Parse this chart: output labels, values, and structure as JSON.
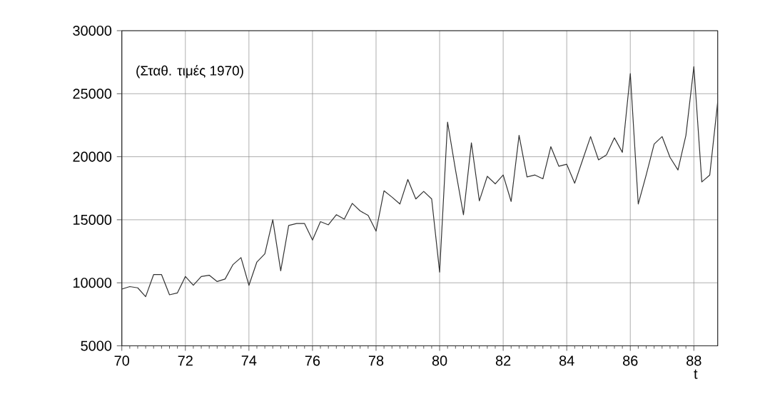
{
  "chart_data": {
    "type": "line",
    "annotations": [
      "(Σταθ. τιμές 1970)"
    ],
    "xlabel": "t",
    "x": [
      70,
      70.25,
      70.5,
      70.75,
      71,
      71.25,
      71.5,
      71.75,
      72,
      72.25,
      72.5,
      72.75,
      73,
      73.25,
      73.5,
      73.75,
      74,
      74.25,
      74.5,
      74.75,
      75,
      75.25,
      75.5,
      75.75,
      76,
      76.25,
      76.5,
      76.75,
      77,
      77.25,
      77.5,
      77.75,
      78,
      78.25,
      78.5,
      78.75,
      79,
      79.25,
      79.5,
      79.75,
      80,
      80.25,
      80.5,
      80.75,
      81,
      81.25,
      81.5,
      81.75,
      82,
      82.25,
      82.5,
      82.75,
      83,
      83.25,
      83.5,
      83.75,
      84,
      84.25,
      84.5,
      84.75,
      85,
      85.25,
      85.5,
      85.75,
      86,
      86.25,
      86.5,
      86.75,
      87,
      87.25,
      87.5,
      87.75,
      88,
      88.25,
      88.5,
      88.75
    ],
    "values": [
      9500,
      9700,
      9600,
      8900,
      10650,
      10650,
      9050,
      9200,
      10500,
      9800,
      10500,
      10600,
      10100,
      10300,
      11450,
      12000,
      9800,
      11650,
      12300,
      15000,
      10950,
      14550,
      14700,
      14700,
      13400,
      14850,
      14600,
      15400,
      15050,
      16300,
      15700,
      15350,
      14100,
      17300,
      16800,
      16250,
      18200,
      16650,
      17250,
      16650,
      10850,
      22750,
      18950,
      15400,
      21100,
      16500,
      18450,
      17850,
      18550,
      16450,
      21700,
      18400,
      18550,
      18250,
      20800,
      19250,
      19400,
      17900,
      19750,
      21600,
      19750,
      20150,
      21500,
      20350,
      26600,
      16250,
      18550,
      21000,
      21600,
      19950,
      18950,
      21700,
      27150,
      18000,
      18550,
      24350
    ],
    "color": "#333333",
    "line_style": "solid",
    "xlim": [
      70,
      88.75
    ],
    "ylim": [
      5000,
      30000
    ],
    "xticks": [
      70,
      72,
      74,
      76,
      78,
      80,
      82,
      84,
      86,
      88
    ],
    "yticks": [
      5000,
      10000,
      15000,
      20000,
      25000,
      30000
    ],
    "grid": true
  }
}
